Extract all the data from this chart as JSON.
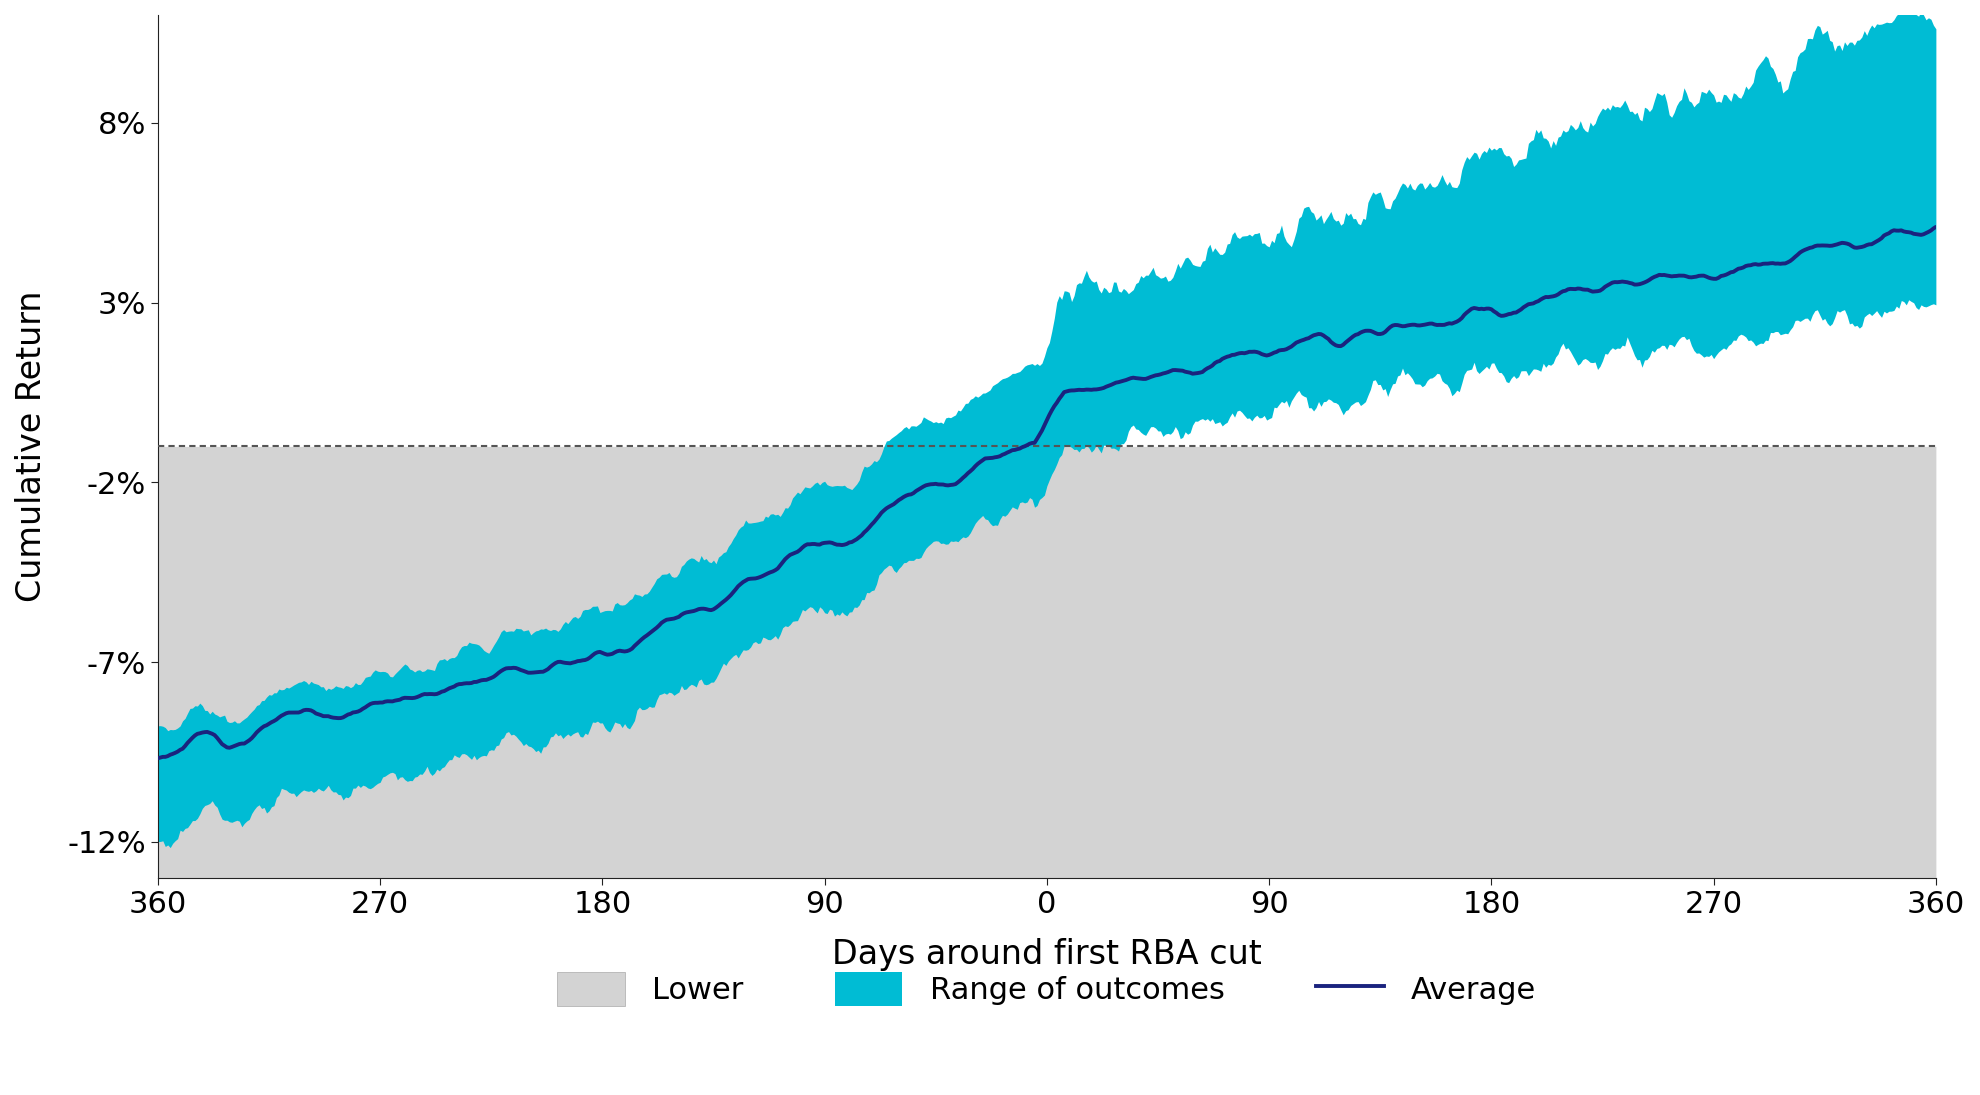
{
  "x_start": -360,
  "x_end": 360,
  "y_ticks": [
    -12,
    -7,
    -2,
    3,
    8
  ],
  "y_tick_labels": [
    "-12%",
    "-7%",
    "-2%",
    "3%",
    "8%"
  ],
  "x_ticks": [
    -360,
    -270,
    -180,
    -90,
    0,
    90,
    180,
    270,
    360
  ],
  "x_tick_labels": [
    "360",
    "270",
    "180",
    "90",
    "0",
    "90",
    "180",
    "270",
    "360"
  ],
  "xlabel": "Days around first RBA cut",
  "ylabel": "Cumulative Return",
  "hline_y": -1.0,
  "avg_color": "#1a237e",
  "range_color": "#00bcd4",
  "lower_color": "#d3d3d3",
  "hline_color": "#555555",
  "background_color": "#ffffff",
  "legend_items": [
    "Lower",
    "Range of outcomes",
    "Average"
  ],
  "avg_linewidth": 2.8,
  "range_alpha": 1.0,
  "lower_alpha": 1.0,
  "ylim_bottom": -13,
  "ylim_top": 11
}
